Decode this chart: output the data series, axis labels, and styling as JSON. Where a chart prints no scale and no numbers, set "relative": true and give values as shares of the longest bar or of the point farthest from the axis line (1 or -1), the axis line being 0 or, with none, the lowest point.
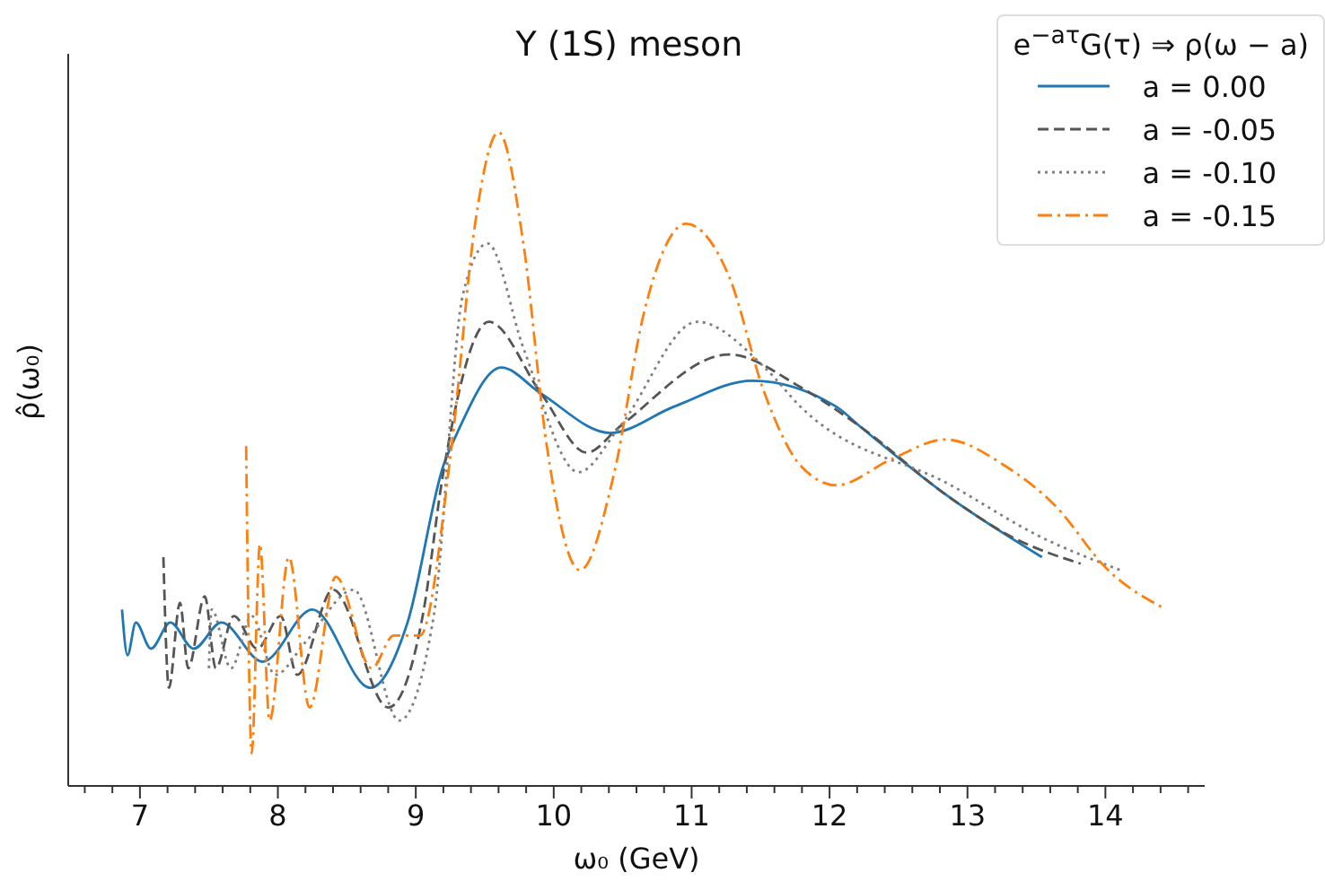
{
  "chart_data": {
    "type": "line",
    "title": "Υ (1S) meson",
    "xlabel": "ω₀ (GeV)",
    "ylabel": "ρ̂(ω₀)",
    "legend_title": "e$^{−aτ}$G(τ) ⇒ ρ(ω − a)",
    "relative": true,
    "legend": "top right",
    "marker": "none",
    "xlim": [
      6.48,
      14.72
    ],
    "xticks": [
      {
        "value": 6.6,
        "label": null
      },
      {
        "value": 6.8,
        "label": null
      },
      7,
      {
        "value": 7.2,
        "label": null
      },
      {
        "value": 7.4,
        "label": null
      },
      {
        "value": 7.6,
        "label": null
      },
      {
        "value": 7.8,
        "label": null
      },
      8,
      {
        "value": 8.2,
        "label": null
      },
      {
        "value": 8.4,
        "label": null
      },
      {
        "value": 8.6,
        "label": null
      },
      {
        "value": 8.8,
        "label": null
      },
      9,
      {
        "value": 9.2,
        "label": null
      },
      {
        "value": 9.4,
        "label": null
      },
      {
        "value": 9.6,
        "label": null
      },
      {
        "value": 9.8,
        "label": null
      },
      10,
      {
        "value": 10.2,
        "label": null
      },
      {
        "value": 10.4,
        "label": null
      },
      {
        "value": 10.6,
        "label": null
      },
      {
        "value": 10.8,
        "label": null
      },
      11,
      {
        "value": 11.2,
        "label": null
      },
      {
        "value": 11.4,
        "label": null
      },
      {
        "value": 11.6,
        "label": null
      },
      {
        "value": 11.8,
        "label": null
      },
      12,
      {
        "value": 12.2,
        "label": null
      },
      {
        "value": 12.4,
        "label": null
      },
      {
        "value": 12.6,
        "label": null
      },
      {
        "value": 12.8,
        "label": null
      },
      13,
      {
        "value": 13.2,
        "label": null
      },
      {
        "value": 13.4,
        "label": null
      },
      {
        "value": 13.6,
        "label": null
      },
      {
        "value": 13.8,
        "label": null
      },
      14,
      {
        "value": 14.2,
        "label": null
      },
      {
        "value": 14.4,
        "label": null
      },
      {
        "value": 14.6,
        "label": null
      }
    ],
    "series": [
      {
        "name": "a = 0.00",
        "color": "#1f77b4",
        "line_style": "solid",
        "x": [
          6.87,
          6.91,
          6.97,
          7.08,
          7.22,
          7.39,
          7.59,
          7.89,
          8.25,
          8.67,
          8.94,
          9.2,
          9.3,
          9.62,
          9.91,
          10.41,
          10.87,
          11.44,
          12.05,
          12.22,
          12.88,
          13.54
        ],
        "values": [
          0.27,
          0.2,
          0.25,
          0.21,
          0.25,
          0.21,
          0.25,
          0.19,
          0.27,
          0.15,
          0.25,
          0.49,
          0.54,
          0.64,
          0.6,
          0.54,
          0.58,
          0.62,
          0.58,
          0.55,
          0.44,
          0.35
        ]
      },
      {
        "name": "a = -0.05",
        "color": "#555555",
        "line_style": "dashed",
        "x": [
          7.17,
          7.21,
          7.29,
          7.35,
          7.47,
          7.55,
          7.68,
          7.85,
          8.02,
          8.14,
          8.4,
          8.8,
          9.05,
          9.2,
          9.53,
          9.91,
          10.24,
          10.48,
          11.27,
          11.79,
          12.22,
          12.88,
          13.33,
          13.82
        ],
        "values": [
          0.35,
          0.15,
          0.28,
          0.18,
          0.29,
          0.18,
          0.26,
          0.21,
          0.26,
          0.17,
          0.3,
          0.12,
          0.26,
          0.48,
          0.71,
          0.6,
          0.51,
          0.55,
          0.66,
          0.61,
          0.55,
          0.44,
          0.38,
          0.34
        ]
      },
      {
        "name": "a = -0.10",
        "color": "#7f7f7f",
        "line_style": "dotted",
        "x": [
          7.5,
          7.52,
          7.66,
          7.81,
          7.98,
          8.2,
          8.55,
          8.88,
          9.13,
          9.34,
          9.52,
          9.78,
          10.18,
          10.48,
          11.04,
          11.53,
          11.79,
          12.88,
          13.54,
          14.11
        ],
        "values": [
          0.18,
          0.27,
          0.18,
          0.26,
          0.17,
          0.22,
          0.3,
          0.1,
          0.26,
          0.75,
          0.83,
          0.67,
          0.48,
          0.55,
          0.71,
          0.64,
          0.58,
          0.46,
          0.38,
          0.33
        ]
      },
      {
        "name": "a = -0.15",
        "color": "#ff7f0e",
        "line_style": "dashdot",
        "x": [
          7.77,
          7.81,
          7.87,
          7.94,
          8.08,
          8.23,
          8.42,
          8.68,
          8.84,
          9.03,
          9.26,
          9.43,
          9.6,
          9.78,
          9.95,
          10.19,
          10.44,
          10.65,
          10.96,
          11.27,
          11.53,
          11.79,
          12.05,
          12.45,
          12.84,
          13.27,
          13.63,
          14.02,
          14.44
        ],
        "values": [
          0.52,
          0.05,
          0.37,
          0.1,
          0.35,
          0.12,
          0.32,
          0.18,
          0.23,
          0.23,
          0.52,
          0.86,
          1,
          0.83,
          0.52,
          0.33,
          0.48,
          0.72,
          0.86,
          0.78,
          0.6,
          0.49,
          0.46,
          0.5,
          0.53,
          0.49,
          0.43,
          0.33,
          0.27
        ]
      }
    ]
  }
}
